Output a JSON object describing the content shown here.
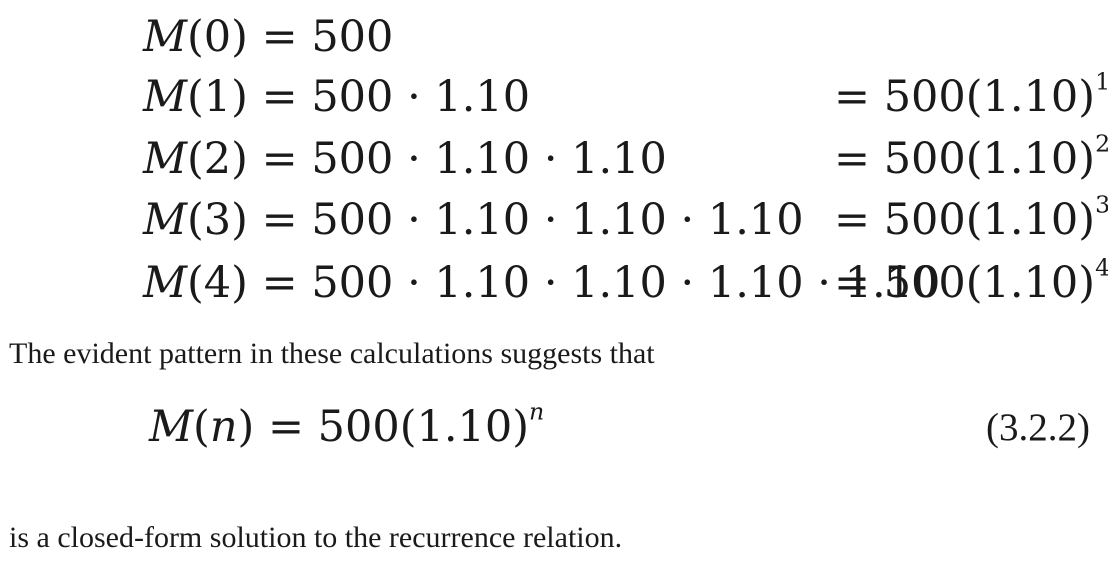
{
  "equations": {
    "lines": [
      {
        "lhs_fn": "M",
        "lhs_arg": "(0)",
        "expr": "= 500",
        "rhs_base": "",
        "rhs_exp": "",
        "trail": ""
      },
      {
        "lhs_fn": "M",
        "lhs_arg": "(1)",
        "expr": "= 500 · 1.10",
        "rhs_base": "= 500(1.10)",
        "rhs_exp": "1",
        "trail": ""
      },
      {
        "lhs_fn": "M",
        "lhs_arg": "(2)",
        "expr": "= 500 · 1.10 · 1.10",
        "rhs_base": "= 500(1.10)",
        "rhs_exp": "2",
        "trail": ""
      },
      {
        "lhs_fn": "M",
        "lhs_arg": "(3)",
        "expr": "= 500 · 1.10 · 1.10 · 1.10",
        "rhs_base": "= 500(1.10)",
        "rhs_exp": "3",
        "trail": ""
      },
      {
        "lhs_fn": "M",
        "lhs_arg": "(4)",
        "expr": "= 500 · 1.10 · 1.10 · 1.10 · 1.10",
        "rhs_base": "= 500(1.10)",
        "rhs_exp": "4",
        "trail": "."
      }
    ]
  },
  "paragraph_1": "The evident pattern in these calculations suggests that",
  "formula": {
    "fn": "M",
    "open": "(",
    "var": "n",
    "close": ")",
    "body": " = 500(1.10)",
    "exp": "n",
    "number": "(3.2.2)"
  },
  "paragraph_2": "is a closed-form solution to the recurrence relation."
}
